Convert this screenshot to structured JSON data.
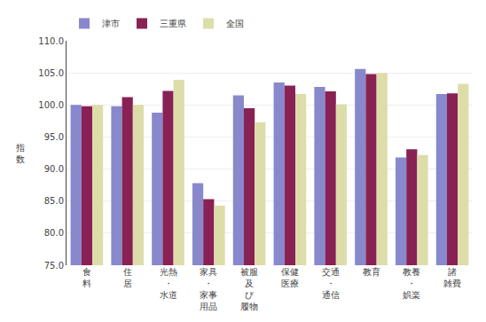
{
  "chart_data": {
    "type": "bar",
    "categories": [
      "食\n料",
      "住\n居",
      "光熱\n・\n水道",
      "家具\n・\n家事\n用品",
      "被服\n及\nび\n履物",
      "保健\n医療",
      "交通\n・\n通信",
      "教育",
      "教養\n・\n娯楽",
      "諸\n雑費"
    ],
    "series": [
      {
        "name": "津市",
        "color": "#8888cc",
        "values": [
          100.0,
          99.8,
          98.8,
          87.8,
          101.5,
          103.5,
          102.8,
          105.6,
          91.8,
          101.7
        ]
      },
      {
        "name": "三重県",
        "color": "#882255",
        "values": [
          99.8,
          101.2,
          102.2,
          85.3,
          99.5,
          103.0,
          102.1,
          104.8,
          93.1,
          101.8
        ]
      },
      {
        "name": "全国",
        "color": "#ddddaa",
        "values": [
          100.0,
          100.0,
          103.9,
          84.3,
          97.3,
          101.7,
          100.1,
          105.0,
          92.2,
          103.3
        ]
      }
    ],
    "y_label": "指\n数",
    "ylim": [
      75.0,
      110.0
    ],
    "yticks": [
      {
        "value": 75,
        "label": "75.0"
      },
      {
        "value": 80,
        "label": "80.0"
      },
      {
        "value": 85,
        "label": "85.0"
      },
      {
        "value": 90,
        "label": "90.0"
      },
      {
        "value": 95,
        "label": "95.0"
      },
      {
        "value": 100,
        "label": "100.0"
      },
      {
        "value": 105,
        "label": "105.0"
      },
      {
        "value": 110,
        "label": "110.0"
      }
    ],
    "grid": true,
    "legend": "top"
  }
}
